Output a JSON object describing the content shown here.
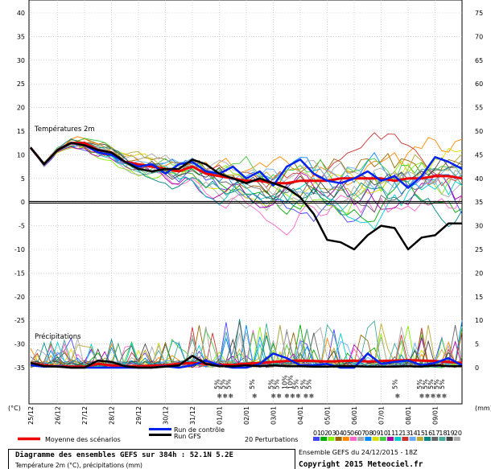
{
  "chart_data": {
    "type": "line",
    "title": "Diagramme des ensembles GEFS sur 384h : 52.1N 5.2E",
    "subtitle": "Température 2m (°C), précipitations (mm)",
    "panel_labels": {
      "temperature": "Températures 2m",
      "precip": "Précipitations"
    },
    "left_axis": {
      "unit": "(°C)",
      "ticks": [
        40,
        35,
        30,
        25,
        20,
        15,
        10,
        5,
        0,
        -5,
        -10,
        -15,
        -20,
        -25,
        -30,
        -35
      ],
      "ylim": [
        -35,
        40
      ]
    },
    "right_axis": {
      "unit": "(mm)",
      "ticks": [
        75,
        70,
        65,
        60,
        55,
        50,
        45,
        40,
        35,
        30,
        25,
        20,
        15,
        10,
        5,
        0
      ]
    },
    "x_ticks": [
      "25/12",
      "26/12",
      "27/12",
      "28/12",
      "29/12",
      "30/12",
      "31/12",
      "01/01",
      "02/01",
      "03/01",
      "04/01",
      "05/01",
      "06/01",
      "07/01",
      "08/01",
      "09/01"
    ],
    "x_range_days": [
      0,
      16
    ],
    "snow_markers": [
      {
        "day": 7.0,
        "pcts": [
          "5%",
          "5%",
          "5%"
        ]
      },
      {
        "day": 8.3,
        "pcts": [
          "5%"
        ]
      },
      {
        "day": 9.0,
        "pcts": [
          "5%",
          "5%"
        ]
      },
      {
        "day": 9.5,
        "pcts": [
          "10%",
          "10%",
          "5%"
        ]
      },
      {
        "day": 10.2,
        "pcts": [
          "5%",
          "5%"
        ]
      },
      {
        "day": 13.6,
        "pcts": [
          "5%"
        ]
      },
      {
        "day": 14.5,
        "pcts": [
          "5%",
          "5%",
          "5%",
          "5%",
          "5%"
        ]
      }
    ],
    "series": [
      {
        "name": "Moyenne des scénarios",
        "color": "#ee0000",
        "width": 3,
        "temp_day": [
          0,
          0.5,
          1,
          1.5,
          2,
          2.5,
          3,
          3.5,
          4,
          4.5,
          5,
          5.5,
          6,
          6.5,
          7,
          7.5,
          8,
          8.5,
          9,
          9.5,
          10,
          10.5,
          11,
          11.5,
          12,
          12.5,
          13,
          13.5,
          14,
          14.5,
          15,
          15.5,
          16
        ],
        "temp": [
          11.5,
          8,
          11,
          12.5,
          12.5,
          11,
          10.5,
          8.5,
          8,
          7.5,
          7,
          6.5,
          7.5,
          6,
          5.5,
          5,
          4.5,
          4.5,
          4,
          4,
          4.5,
          4.5,
          4.5,
          5,
          5,
          5,
          5,
          4.5,
          5,
          5,
          5.5,
          5.5,
          5
        ],
        "precip": [
          1,
          0.5,
          0.3,
          0.2,
          0.2,
          0.8,
          0.5,
          0.3,
          0.3,
          0.4,
          0.5,
          0.8,
          1,
          0.8,
          0.6,
          0.6,
          0.8,
          1,
          1.2,
          1.4,
          1.5,
          1.4,
          1.3,
          1.4,
          1.5,
          1.3,
          1.4,
          1.5,
          1.6,
          1.5,
          1.4,
          1.2,
          1
        ]
      },
      {
        "name": "Run de contrôle",
        "color": "#0022ee",
        "width": 2.5,
        "temp_day": [
          0,
          0.5,
          1,
          1.5,
          2,
          2.5,
          3,
          3.5,
          4,
          4.5,
          5,
          5.5,
          6,
          6.5,
          7,
          7.5,
          8,
          8.5,
          9,
          9.5,
          10,
          10.5,
          11,
          11.5,
          12,
          12.5,
          13,
          13.5,
          14,
          14.5,
          15,
          15.5,
          16
        ],
        "temp": [
          11.5,
          8,
          11,
          12.5,
          12,
          10.5,
          10,
          8.5,
          7.5,
          8,
          6,
          8,
          8.5,
          6.5,
          6,
          7.5,
          5,
          6.5,
          3.5,
          7.5,
          9,
          6,
          4.5,
          4,
          5,
          6.5,
          4.5,
          5.5,
          3,
          5.5,
          9.5,
          8.5,
          7
        ],
        "precip": [
          0.5,
          0.2,
          0.3,
          0,
          0,
          0,
          0,
          0,
          0,
          0,
          0.3,
          0,
          0.5,
          1.5,
          0.5,
          0,
          0,
          0.8,
          3,
          2,
          0.5,
          0.5,
          0.8,
          0,
          0,
          3,
          0.8,
          1.2,
          1.5,
          0.5,
          1,
          2,
          0.5
        ]
      },
      {
        "name": "Run GFS",
        "color": "#000000",
        "width": 2.5,
        "temp_day": [
          0,
          0.5,
          1,
          1.5,
          2,
          2.5,
          3,
          3.5,
          4,
          4.5,
          5,
          5.5,
          6,
          6.5,
          7,
          7.5,
          8,
          8.5,
          9,
          9.5,
          10,
          10.5,
          11,
          11.5,
          12,
          12.5,
          13,
          13.5,
          14,
          14.5,
          15,
          15.5,
          16
        ],
        "temp": [
          11.5,
          8,
          11,
          12.5,
          12,
          11,
          10.5,
          8.5,
          7,
          6.5,
          7,
          7,
          9,
          8,
          6,
          5,
          4,
          5,
          4,
          3,
          1,
          -2.5,
          -8,
          -8.5,
          -10,
          -7,
          -5,
          -5.5,
          -10,
          -7.5,
          -7,
          -4.5,
          -4.5
        ],
        "precip": [
          1,
          0.3,
          0.2,
          0,
          0,
          1.5,
          1.2,
          0.3,
          0,
          0,
          0.2,
          0.5,
          2.5,
          0.8,
          0.3,
          0.3,
          0.5,
          0.3,
          0.5,
          0.3,
          0.3,
          0.2,
          0.2,
          0.3,
          0.3,
          0.2,
          0.2,
          0.2,
          0.3,
          0.2,
          0.5,
          0.3,
          0.3
        ]
      }
    ],
    "legend": {
      "mean_label": "Moyenne des scénarios",
      "control_label": "Run de contrôle",
      "gfs_label": "Run GFS",
      "perturbations_label": "20 Perturbations",
      "perturbation_ids": [
        "01",
        "02",
        "03",
        "04",
        "05",
        "06",
        "07",
        "08",
        "09",
        "10",
        "11",
        "12",
        "13",
        "14",
        "15",
        "16",
        "17",
        "18",
        "19",
        "20"
      ],
      "perturbation_colors": [
        "#4444ff",
        "#00aa00",
        "#88ee00",
        "#996600",
        "#ff8800",
        "#ff66cc",
        "#aaaaaa",
        "#0088ff",
        "#dddd00",
        "#44cc44",
        "#aa00aa",
        "#00cccc",
        "#cc3333",
        "#66aaff",
        "#bbaa33",
        "#008888",
        "#666666",
        "#44aa99",
        "#444444",
        "#aaaaaa"
      ]
    }
  },
  "footer": {
    "title": "Diagramme des ensembles GEFS sur 384h : 52.1N 5.2E",
    "subtitle": "Température 2m (°C), précipitations (mm)",
    "run_info": "Ensemble GEFS du 24/12/2015 - 18Z",
    "copyright": "Copyright 2015 Meteociel.fr"
  }
}
